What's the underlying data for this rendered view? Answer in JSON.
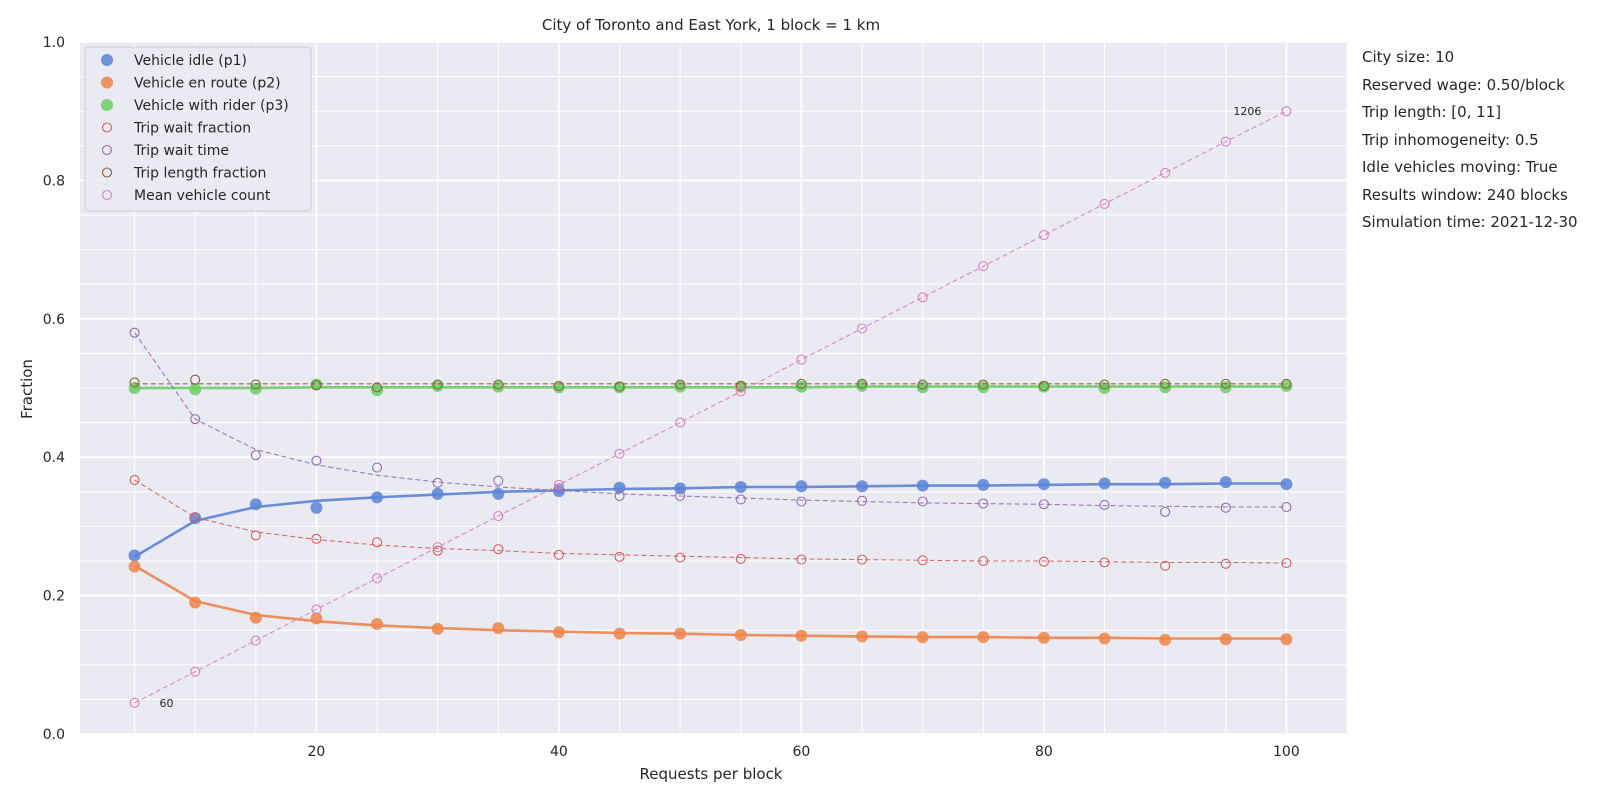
{
  "chart_data": {
    "type": "scatter",
    "title": "City of Toronto and East York, 1 block = 1 km",
    "xlabel": "Requests per block",
    "ylabel": "Fraction",
    "xlim": [
      0.5,
      105
    ],
    "ylim": [
      0,
      1.0
    ],
    "x_ticks": [
      20,
      40,
      60,
      80,
      100
    ],
    "x_tick_labels": [
      "20",
      "40",
      "60",
      "80",
      "100"
    ],
    "y_ticks": [
      0,
      0.2,
      0.4,
      0.6,
      0.8,
      1.0
    ],
    "y_tick_labels": [
      "0.0",
      "0.2",
      "0.4",
      "0.6",
      "0.8",
      "1.0"
    ],
    "grid": true,
    "legend_placement": "top-left",
    "x": [
      5,
      10,
      15,
      20,
      25,
      30,
      35,
      40,
      45,
      50,
      55,
      60,
      65,
      70,
      75,
      80,
      85,
      90,
      95,
      100
    ],
    "series": [
      {
        "name": "Vehicle idle (p1)",
        "marker": "filled",
        "color": "#5a83d6",
        "line": "solid",
        "values": [
          0.258,
          0.312,
          0.332,
          0.327,
          0.342,
          0.347,
          0.347,
          0.351,
          0.356,
          0.355,
          0.357,
          0.358,
          0.358,
          0.359,
          0.36,
          0.361,
          0.362,
          0.363,
          0.364,
          0.361
        ],
        "trend": [
          0.256,
          0.308,
          0.328,
          0.337,
          0.342,
          0.346,
          0.35,
          0.352,
          0.354,
          0.355,
          0.357,
          0.357,
          0.358,
          0.359,
          0.359,
          0.36,
          0.361,
          0.361,
          0.362,
          0.362
        ]
      },
      {
        "name": "Vehicle en route (p2)",
        "marker": "filled",
        "color": "#ee854a",
        "line": "solid",
        "values": [
          0.242,
          0.19,
          0.168,
          0.167,
          0.159,
          0.152,
          0.153,
          0.147,
          0.145,
          0.145,
          0.143,
          0.142,
          0.141,
          0.14,
          0.14,
          0.139,
          0.138,
          0.136,
          0.137,
          0.137
        ],
        "trend": [
          0.243,
          0.192,
          0.172,
          0.163,
          0.157,
          0.153,
          0.15,
          0.148,
          0.146,
          0.145,
          0.143,
          0.142,
          0.141,
          0.14,
          0.14,
          0.139,
          0.139,
          0.138,
          0.138,
          0.138
        ]
      },
      {
        "name": "Vehicle with rider (p3)",
        "marker": "filled",
        "color": "#6acc64",
        "line": "solid",
        "values": [
          0.5,
          0.498,
          0.499,
          0.505,
          0.497,
          0.503,
          0.502,
          0.501,
          0.501,
          0.502,
          0.502,
          0.502,
          0.503,
          0.501,
          0.501,
          0.502,
          0.5,
          0.501,
          0.501,
          0.503
        ],
        "trend": [
          0.5,
          0.5,
          0.5,
          0.501,
          0.501,
          0.501,
          0.501,
          0.501,
          0.501,
          0.501,
          0.501,
          0.501,
          0.502,
          0.502,
          0.502,
          0.502,
          0.502,
          0.502,
          0.502,
          0.502
        ]
      },
      {
        "name": "Trip wait fraction",
        "marker": "open",
        "color": "#d65f5f",
        "line": "dashed",
        "values": [
          0.367,
          0.313,
          0.287,
          0.282,
          0.277,
          0.265,
          0.267,
          0.259,
          0.256,
          0.255,
          0.253,
          0.252,
          0.252,
          0.251,
          0.25,
          0.249,
          0.248,
          0.243,
          0.246,
          0.247
        ],
        "trend": [
          0.367,
          0.313,
          0.292,
          0.281,
          0.273,
          0.268,
          0.265,
          0.261,
          0.259,
          0.257,
          0.255,
          0.253,
          0.252,
          0.251,
          0.25,
          0.25,
          0.249,
          0.248,
          0.248,
          0.247
        ]
      },
      {
        "name": "Trip wait time",
        "marker": "open",
        "color": "#956cb4",
        "line": "dashed",
        "values": [
          0.58,
          0.455,
          0.403,
          0.395,
          0.385,
          0.363,
          0.366,
          0.355,
          0.344,
          0.344,
          0.339,
          0.336,
          0.337,
          0.336,
          0.333,
          0.332,
          0.331,
          0.321,
          0.327,
          0.328
        ],
        "trend": [
          0.58,
          0.455,
          0.411,
          0.389,
          0.374,
          0.364,
          0.357,
          0.352,
          0.347,
          0.344,
          0.341,
          0.338,
          0.336,
          0.334,
          0.333,
          0.332,
          0.33,
          0.329,
          0.328,
          0.328
        ]
      },
      {
        "name": "Trip length fraction",
        "marker": "open",
        "color": "#8c613c",
        "line": "dashed",
        "values": [
          0.508,
          0.512,
          0.505,
          0.504,
          0.501,
          0.505,
          0.505,
          0.503,
          0.502,
          0.505,
          0.503,
          0.506,
          0.506,
          0.505,
          0.505,
          0.503,
          0.505,
          0.506,
          0.506,
          0.506
        ],
        "trend": [
          0.506,
          0.506,
          0.506,
          0.506,
          0.506,
          0.506,
          0.506,
          0.506,
          0.506,
          0.506,
          0.506,
          0.506,
          0.506,
          0.506,
          0.506,
          0.506,
          0.506,
          0.506,
          0.506,
          0.506
        ]
      },
      {
        "name": "Mean vehicle count",
        "marker": "open",
        "color": "#dc7ec0",
        "line": "dashed",
        "values": [
          0.045,
          0.09,
          0.135,
          0.18,
          0.225,
          0.27,
          0.315,
          0.36,
          0.405,
          0.45,
          0.495,
          0.541,
          0.586,
          0.631,
          0.676,
          0.721,
          0.766,
          0.811,
          0.856,
          0.9
        ],
        "trend": [
          0.045,
          0.09,
          0.135,
          0.18,
          0.225,
          0.27,
          0.315,
          0.36,
          0.405,
          0.45,
          0.495,
          0.541,
          0.586,
          0.631,
          0.676,
          0.721,
          0.766,
          0.811,
          0.856,
          0.9
        ]
      }
    ],
    "annotations": [
      {
        "text": "60",
        "x": 5,
        "y": 0.045,
        "anchor": "right-of-point"
      },
      {
        "text": "1206",
        "x": 100,
        "y": 0.9,
        "anchor": "left-of-point"
      }
    ]
  },
  "info_panel": [
    "City size: 10",
    "Reserved wage: 0.50/block",
    "Trip length: [0, 11]",
    "Trip inhomogeneity: 0.5",
    "Idle vehicles moving: True",
    "Results window: 240 blocks",
    "Simulation time: 2021-12-30"
  ]
}
